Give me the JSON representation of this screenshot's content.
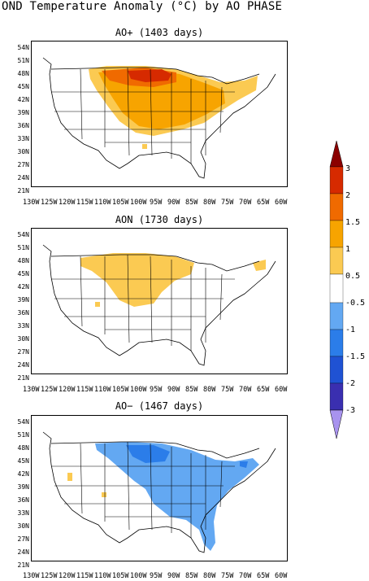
{
  "title": "OND Temperature Anomaly (°C) by AO PHASE",
  "panels": [
    {
      "title": "AO+ (1403 days)"
    },
    {
      "title": "AON (1730 days)"
    },
    {
      "title": "AO− (1467 days)"
    }
  ],
  "lat_labels": [
    "54N",
    "51N",
    "48N",
    "45N",
    "42N",
    "39N",
    "36N",
    "33N",
    "30N",
    "27N",
    "24N",
    "21N"
  ],
  "lon_labels": [
    "130W",
    "125W",
    "120W",
    "115W",
    "110W",
    "105W",
    "100W",
    "95W",
    "90W",
    "85W",
    "80W",
    "75W",
    "70W",
    "65W",
    "60W"
  ],
  "colorbar": {
    "labels": [
      "3",
      "2",
      "1.5",
      "1",
      "0.5",
      "-0.5",
      "-1",
      "-1.5",
      "-2",
      "-3"
    ],
    "colors": [
      "#8b0000",
      "#d62a00",
      "#f06a00",
      "#f7a400",
      "#fbca52",
      "#ffffff",
      "#63a8f2",
      "#2b7de9",
      "#1f52d3",
      "#3a2fb0",
      "#a893ee"
    ]
  }
}
